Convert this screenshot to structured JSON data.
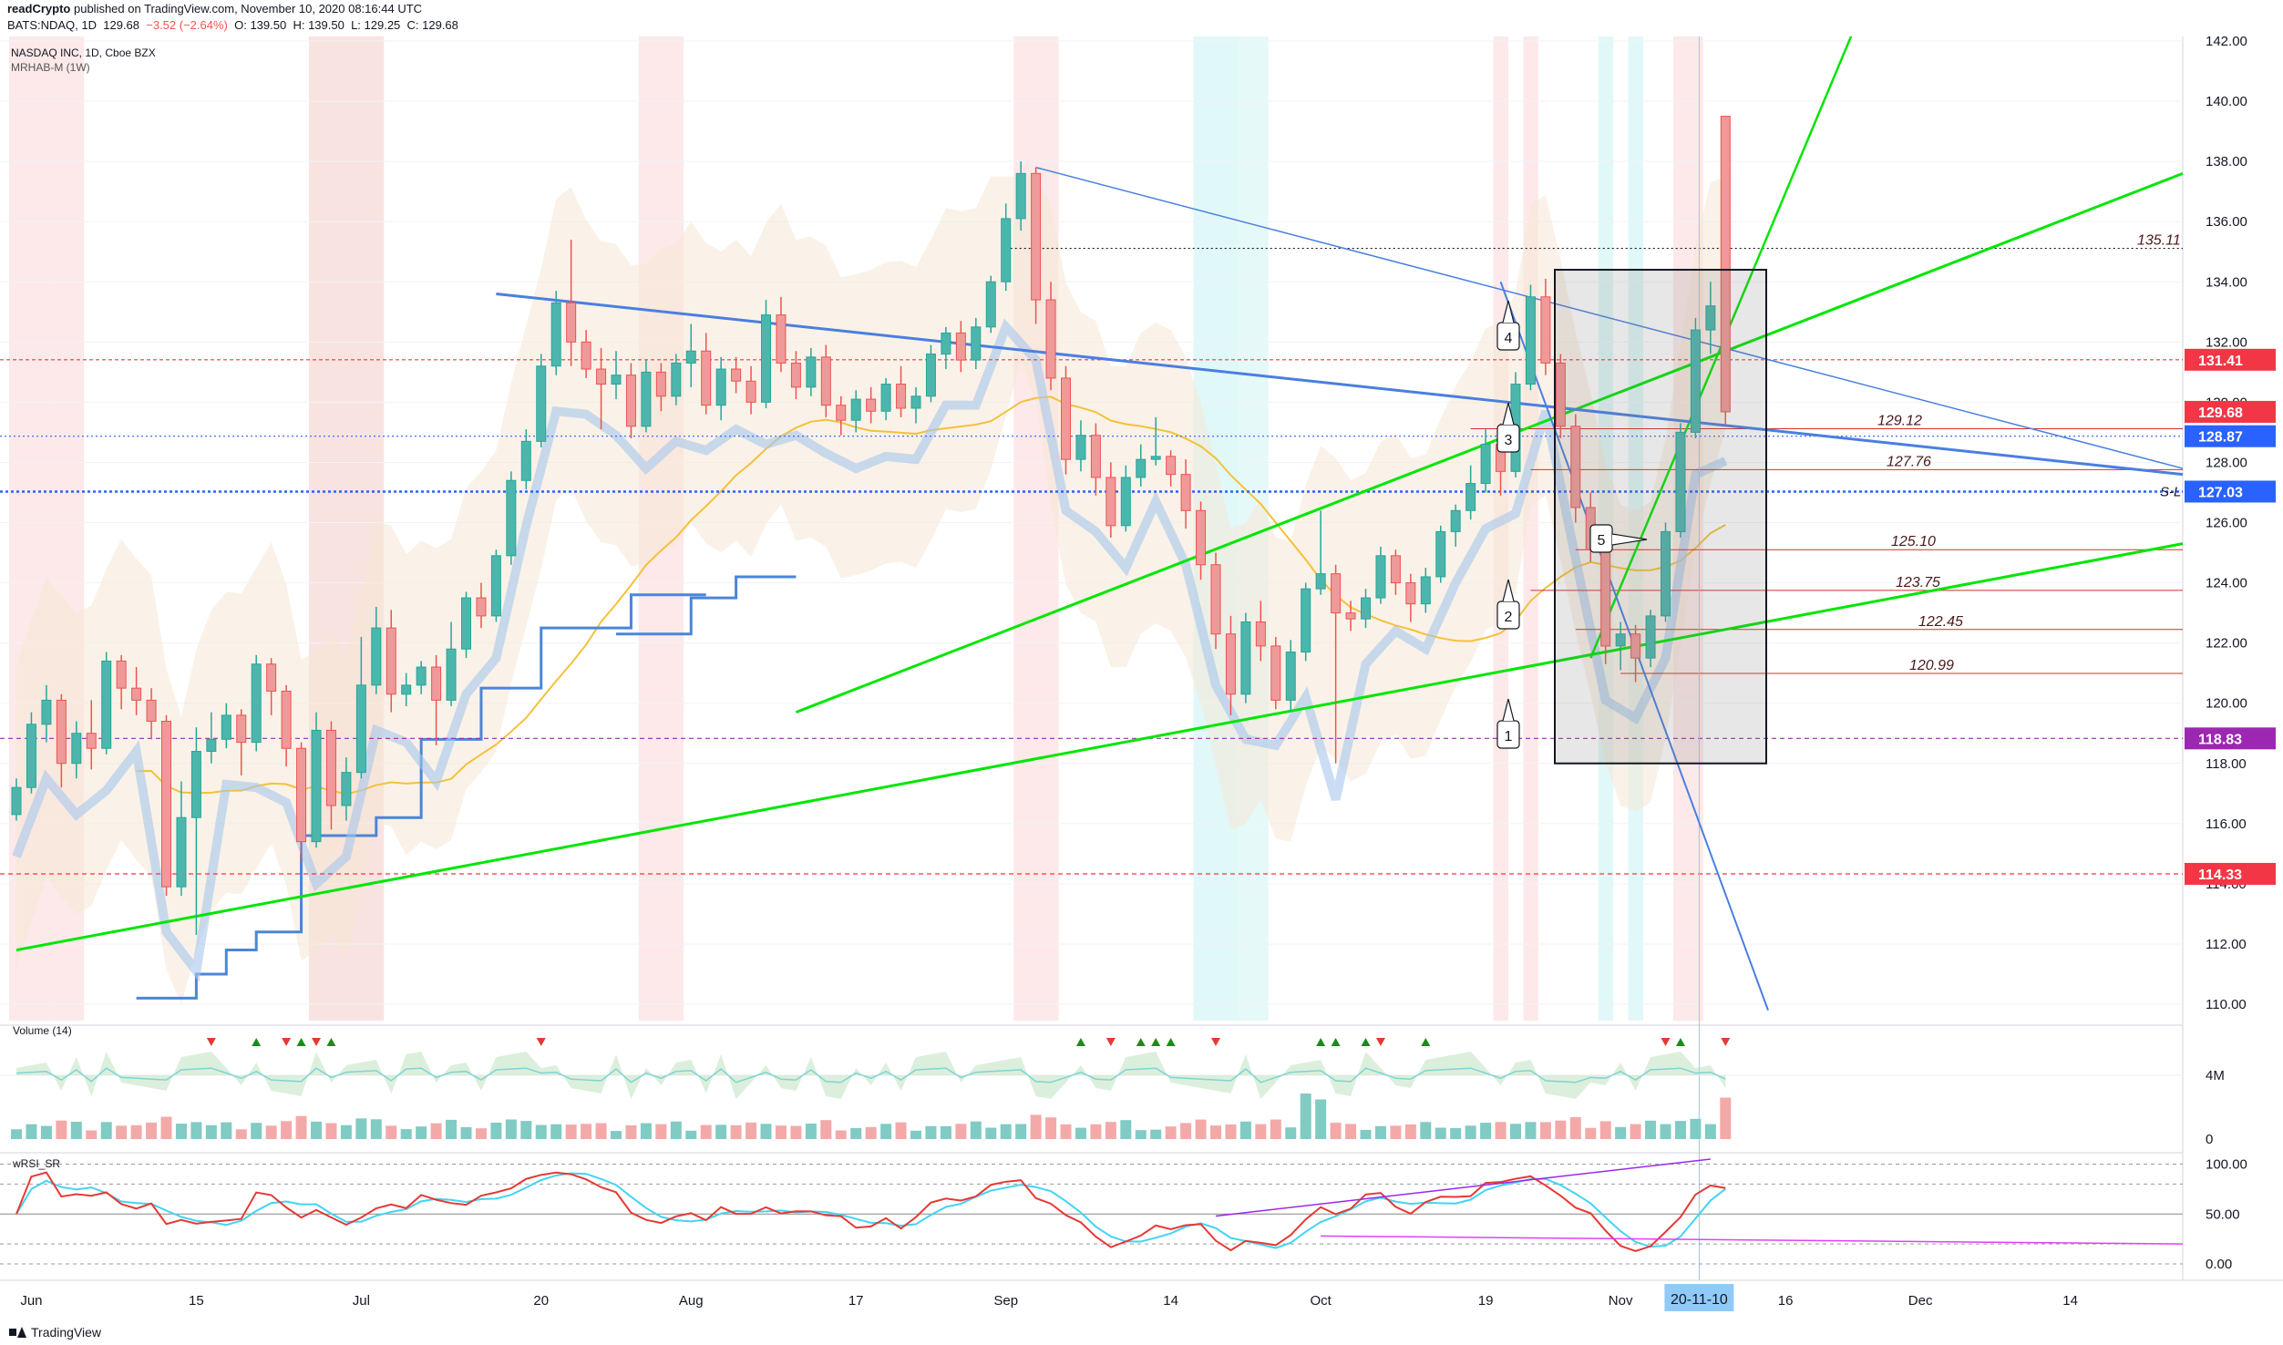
{
  "header": {
    "publisher": "readCrypto",
    "published_text": "published on TradingView.com, November 10, 2020 08:16:44 UTC",
    "symbol": "BATS:NDAQ, 1D",
    "last": "129.68",
    "change": "−3.52 (−2.64%)",
    "open": "O: 139.50",
    "high": "H: 139.50",
    "low": "L: 129.25",
    "close": "C: 129.68"
  },
  "legend": {
    "title": "NASDAQ INC, 1D, Cboe BZX",
    "indicator": "MRHAB-M (1W)"
  },
  "colors": {
    "up": "#26a69a",
    "down": "#ef5350",
    "accent_blue": "#2962ff",
    "trend_green": "#00e600",
    "trend_blue": "#4a7fe0"
  },
  "chart_data": {
    "type": "candlestick",
    "title": "NASDAQ INC, 1D, Cboe BZX",
    "ylim": [
      109.5,
      142.5
    ],
    "y_ticks": [
      110,
      112,
      114,
      116,
      118,
      120,
      122,
      124,
      126,
      128,
      130,
      132,
      134,
      136,
      138,
      140,
      142
    ],
    "y_tick_labels": [
      "110.00",
      "112.00",
      "114.00",
      "116.00",
      "118.00",
      "120.00",
      "122.00",
      "124.00",
      "126.00",
      "128.00",
      "130.00",
      "132.00",
      "134.00",
      "136.00",
      "138.00",
      "140.00",
      "142.00"
    ],
    "x_labels": [
      "Jun",
      "15",
      "Jul",
      "20",
      "Aug",
      "17",
      "Sep",
      "14",
      "Oct",
      "19",
      "Nov",
      "16",
      "Dec",
      "14"
    ],
    "x_label_bars": [
      1,
      12,
      23,
      35,
      45,
      56,
      66,
      77,
      87,
      98,
      107,
      118,
      127,
      137
    ],
    "current_date_label": "20-11-10",
    "current_date_bar": 112,
    "candles": [
      {
        "o": 116.3,
        "h": 117.5,
        "l": 116.1,
        "c": 117.2
      },
      {
        "o": 117.2,
        "h": 119.7,
        "l": 117.0,
        "c": 119.3
      },
      {
        "o": 119.3,
        "h": 120.6,
        "l": 118.7,
        "c": 120.1
      },
      {
        "o": 120.1,
        "h": 120.3,
        "l": 117.2,
        "c": 118.0
      },
      {
        "o": 118.0,
        "h": 119.4,
        "l": 117.5,
        "c": 119.0
      },
      {
        "o": 119.0,
        "h": 120.1,
        "l": 117.8,
        "c": 118.5
      },
      {
        "o": 118.5,
        "h": 121.7,
        "l": 118.3,
        "c": 121.4
      },
      {
        "o": 121.4,
        "h": 121.6,
        "l": 119.8,
        "c": 120.5
      },
      {
        "o": 120.5,
        "h": 121.2,
        "l": 119.6,
        "c": 120.1
      },
      {
        "o": 120.1,
        "h": 120.5,
        "l": 118.8,
        "c": 119.4
      },
      {
        "o": 119.4,
        "h": 119.6,
        "l": 113.6,
        "c": 113.9
      },
      {
        "o": 113.9,
        "h": 117.4,
        "l": 113.6,
        "c": 116.2
      },
      {
        "o": 116.2,
        "h": 119.2,
        "l": 112.3,
        "c": 118.4
      },
      {
        "o": 118.4,
        "h": 119.7,
        "l": 118.0,
        "c": 118.8
      },
      {
        "o": 118.8,
        "h": 120.0,
        "l": 118.5,
        "c": 119.6
      },
      {
        "o": 119.6,
        "h": 119.8,
        "l": 117.6,
        "c": 118.7
      },
      {
        "o": 118.7,
        "h": 121.6,
        "l": 118.4,
        "c": 121.3
      },
      {
        "o": 121.3,
        "h": 121.5,
        "l": 119.6,
        "c": 120.4
      },
      {
        "o": 120.4,
        "h": 120.6,
        "l": 117.9,
        "c": 118.5
      },
      {
        "o": 118.5,
        "h": 118.7,
        "l": 114.7,
        "c": 115.4
      },
      {
        "o": 115.4,
        "h": 119.7,
        "l": 115.2,
        "c": 119.1
      },
      {
        "o": 119.1,
        "h": 119.4,
        "l": 115.8,
        "c": 116.6
      },
      {
        "o": 116.6,
        "h": 118.2,
        "l": 116.1,
        "c": 117.7
      },
      {
        "o": 117.7,
        "h": 122.2,
        "l": 117.5,
        "c": 120.6
      },
      {
        "o": 120.6,
        "h": 123.2,
        "l": 120.3,
        "c": 122.5
      },
      {
        "o": 122.5,
        "h": 123.1,
        "l": 119.7,
        "c": 120.3
      },
      {
        "o": 120.3,
        "h": 121.0,
        "l": 119.9,
        "c": 120.6
      },
      {
        "o": 120.6,
        "h": 121.4,
        "l": 120.3,
        "c": 121.2
      },
      {
        "o": 121.2,
        "h": 121.6,
        "l": 118.6,
        "c": 120.1
      },
      {
        "o": 120.1,
        "h": 122.7,
        "l": 119.9,
        "c": 121.8
      },
      {
        "o": 121.8,
        "h": 123.7,
        "l": 121.5,
        "c": 123.5
      },
      {
        "o": 123.5,
        "h": 124.0,
        "l": 122.5,
        "c": 122.9
      },
      {
        "o": 122.9,
        "h": 125.1,
        "l": 122.7,
        "c": 124.9
      },
      {
        "o": 124.9,
        "h": 127.7,
        "l": 124.6,
        "c": 127.4
      },
      {
        "o": 127.4,
        "h": 129.1,
        "l": 127.1,
        "c": 128.7
      },
      {
        "o": 128.7,
        "h": 131.6,
        "l": 128.5,
        "c": 131.2
      },
      {
        "o": 131.2,
        "h": 133.7,
        "l": 130.9,
        "c": 133.3
      },
      {
        "o": 133.3,
        "h": 135.4,
        "l": 131.2,
        "c": 132.0
      },
      {
        "o": 132.0,
        "h": 132.4,
        "l": 130.8,
        "c": 131.1
      },
      {
        "o": 131.1,
        "h": 131.8,
        "l": 129.1,
        "c": 130.6
      },
      {
        "o": 130.6,
        "h": 131.7,
        "l": 130.1,
        "c": 130.9
      },
      {
        "o": 130.9,
        "h": 131.3,
        "l": 128.8,
        "c": 129.2
      },
      {
        "o": 129.2,
        "h": 131.4,
        "l": 129.0,
        "c": 131.0
      },
      {
        "o": 131.0,
        "h": 131.3,
        "l": 129.7,
        "c": 130.2
      },
      {
        "o": 130.2,
        "h": 131.6,
        "l": 129.9,
        "c": 131.3
      },
      {
        "o": 131.3,
        "h": 132.6,
        "l": 130.5,
        "c": 131.7
      },
      {
        "o": 131.7,
        "h": 132.3,
        "l": 129.6,
        "c": 129.9
      },
      {
        "o": 129.9,
        "h": 131.5,
        "l": 129.4,
        "c": 131.1
      },
      {
        "o": 131.1,
        "h": 131.5,
        "l": 130.3,
        "c": 130.7
      },
      {
        "o": 130.7,
        "h": 131.2,
        "l": 129.6,
        "c": 130.0
      },
      {
        "o": 130.0,
        "h": 133.4,
        "l": 129.8,
        "c": 132.9
      },
      {
        "o": 132.9,
        "h": 133.5,
        "l": 131.0,
        "c": 131.3
      },
      {
        "o": 131.3,
        "h": 131.7,
        "l": 130.1,
        "c": 130.5
      },
      {
        "o": 130.5,
        "h": 131.8,
        "l": 130.2,
        "c": 131.5
      },
      {
        "o": 131.5,
        "h": 131.9,
        "l": 129.5,
        "c": 129.9
      },
      {
        "o": 129.9,
        "h": 130.2,
        "l": 128.9,
        "c": 129.4
      },
      {
        "o": 129.4,
        "h": 130.4,
        "l": 129.0,
        "c": 130.1
      },
      {
        "o": 130.1,
        "h": 130.5,
        "l": 129.3,
        "c": 129.7
      },
      {
        "o": 129.7,
        "h": 130.8,
        "l": 129.4,
        "c": 130.6
      },
      {
        "o": 130.6,
        "h": 131.2,
        "l": 129.5,
        "c": 129.8
      },
      {
        "o": 129.8,
        "h": 130.5,
        "l": 129.3,
        "c": 130.2
      },
      {
        "o": 130.2,
        "h": 131.9,
        "l": 130.0,
        "c": 131.6
      },
      {
        "o": 131.6,
        "h": 132.5,
        "l": 131.1,
        "c": 132.3
      },
      {
        "o": 132.3,
        "h": 132.7,
        "l": 131.0,
        "c": 131.4
      },
      {
        "o": 131.4,
        "h": 132.8,
        "l": 131.1,
        "c": 132.5
      },
      {
        "o": 132.5,
        "h": 134.2,
        "l": 132.3,
        "c": 134.0
      },
      {
        "o": 134.0,
        "h": 136.6,
        "l": 133.7,
        "c": 136.1
      },
      {
        "o": 136.1,
        "h": 138.0,
        "l": 135.7,
        "c": 137.6
      },
      {
        "o": 137.6,
        "h": 137.8,
        "l": 132.6,
        "c": 133.4
      },
      {
        "o": 133.4,
        "h": 134.0,
        "l": 130.4,
        "c": 130.8
      },
      {
        "o": 130.8,
        "h": 131.2,
        "l": 127.6,
        "c": 128.1
      },
      {
        "o": 128.1,
        "h": 129.4,
        "l": 127.7,
        "c": 128.9
      },
      {
        "o": 128.9,
        "h": 129.3,
        "l": 126.9,
        "c": 127.5
      },
      {
        "o": 127.5,
        "h": 128.0,
        "l": 125.5,
        "c": 125.9
      },
      {
        "o": 125.9,
        "h": 127.9,
        "l": 125.7,
        "c": 127.5
      },
      {
        "o": 127.5,
        "h": 128.6,
        "l": 127.2,
        "c": 128.1
      },
      {
        "o": 128.1,
        "h": 129.5,
        "l": 127.9,
        "c": 128.2
      },
      {
        "o": 128.2,
        "h": 128.4,
        "l": 127.2,
        "c": 127.6
      },
      {
        "o": 127.6,
        "h": 128.1,
        "l": 125.8,
        "c": 126.4
      },
      {
        "o": 126.4,
        "h": 126.7,
        "l": 124.1,
        "c": 124.6
      },
      {
        "o": 124.6,
        "h": 125.0,
        "l": 121.8,
        "c": 122.3
      },
      {
        "o": 122.3,
        "h": 122.9,
        "l": 119.6,
        "c": 120.3
      },
      {
        "o": 120.3,
        "h": 123.0,
        "l": 120.0,
        "c": 122.7
      },
      {
        "o": 122.7,
        "h": 123.4,
        "l": 121.4,
        "c": 121.9
      },
      {
        "o": 121.9,
        "h": 122.2,
        "l": 119.8,
        "c": 120.1
      },
      {
        "o": 120.1,
        "h": 122.1,
        "l": 119.7,
        "c": 121.7
      },
      {
        "o": 121.7,
        "h": 124.0,
        "l": 121.4,
        "c": 123.8
      },
      {
        "o": 123.8,
        "h": 126.4,
        "l": 123.6,
        "c": 124.3
      },
      {
        "o": 124.3,
        "h": 124.6,
        "l": 118.0,
        "c": 123.0
      },
      {
        "o": 123.0,
        "h": 123.4,
        "l": 122.4,
        "c": 122.8
      },
      {
        "o": 122.8,
        "h": 123.8,
        "l": 122.5,
        "c": 123.5
      },
      {
        "o": 123.5,
        "h": 125.2,
        "l": 123.3,
        "c": 124.9
      },
      {
        "o": 124.9,
        "h": 125.1,
        "l": 123.6,
        "c": 124.0
      },
      {
        "o": 124.0,
        "h": 124.3,
        "l": 122.7,
        "c": 123.3
      },
      {
        "o": 123.3,
        "h": 124.5,
        "l": 123.0,
        "c": 124.2
      },
      {
        "o": 124.2,
        "h": 125.9,
        "l": 124.0,
        "c": 125.7
      },
      {
        "o": 125.7,
        "h": 126.6,
        "l": 125.2,
        "c": 126.4
      },
      {
        "o": 126.4,
        "h": 127.9,
        "l": 126.1,
        "c": 127.3
      },
      {
        "o": 127.3,
        "h": 129.1,
        "l": 127.0,
        "c": 128.6
      },
      {
        "o": 128.6,
        "h": 129.3,
        "l": 126.9,
        "c": 127.7
      },
      {
        "o": 127.7,
        "h": 131.0,
        "l": 127.5,
        "c": 130.6
      },
      {
        "o": 130.6,
        "h": 133.9,
        "l": 130.4,
        "c": 133.5
      },
      {
        "o": 133.5,
        "h": 134.1,
        "l": 130.9,
        "c": 131.3
      },
      {
        "o": 131.3,
        "h": 131.6,
        "l": 128.8,
        "c": 129.2
      },
      {
        "o": 129.2,
        "h": 129.6,
        "l": 126.0,
        "c": 126.5
      },
      {
        "o": 126.5,
        "h": 127.0,
        "l": 124.7,
        "c": 125.1
      },
      {
        "o": 125.1,
        "h": 125.4,
        "l": 121.3,
        "c": 121.9
      },
      {
        "o": 121.9,
        "h": 122.7,
        "l": 121.1,
        "c": 122.3
      },
      {
        "o": 122.3,
        "h": 122.6,
        "l": 120.7,
        "c": 121.5
      },
      {
        "o": 121.5,
        "h": 123.1,
        "l": 121.2,
        "c": 122.9
      },
      {
        "o": 122.9,
        "h": 126.0,
        "l": 122.7,
        "c": 125.7
      },
      {
        "o": 125.7,
        "h": 129.3,
        "l": 125.5,
        "c": 129.0
      },
      {
        "o": 129.0,
        "h": 132.8,
        "l": 128.8,
        "c": 132.4
      },
      {
        "o": 132.4,
        "h": 134.0,
        "l": 131.6,
        "c": 133.2
      },
      {
        "o": 139.5,
        "h": 139.5,
        "l": 129.25,
        "c": 129.68
      }
    ],
    "price_labels": [
      {
        "value": 131.41,
        "label": "131.41",
        "color": "#f23645"
      },
      {
        "value": 129.68,
        "label": "129.68",
        "color": "#f23645"
      },
      {
        "value": 128.87,
        "label": "128.87",
        "color": "#2962ff"
      },
      {
        "value": 127.03,
        "label": "127.03",
        "color": "#2962ff"
      },
      {
        "value": 118.83,
        "label": "118.83",
        "color": "#9c27b0"
      },
      {
        "value": 114.33,
        "label": "114.33",
        "color": "#f23645"
      }
    ],
    "level_labels": [
      {
        "value": 135.11,
        "label": "135.11"
      },
      {
        "value": 129.12,
        "label": "129.12"
      },
      {
        "value": 127.76,
        "label": "127.76"
      },
      {
        "value": 125.1,
        "label": "125.10"
      },
      {
        "value": 123.75,
        "label": "123.75"
      },
      {
        "value": 122.45,
        "label": "122.45"
      },
      {
        "value": 120.99,
        "label": "120.99"
      }
    ],
    "sl_label": "S-L",
    "callouts": [
      "1",
      "2",
      "3",
      "4",
      "5"
    ],
    "volume_pane": {
      "label": "Volume (14)",
      "y_ticks": [
        "4M",
        "0"
      ]
    },
    "rsi_pane": {
      "label": "wRSI_SR",
      "y_ticks": [
        "100.00",
        "50.00",
        "0.00"
      ],
      "ylim": [
        -10,
        105
      ]
    }
  },
  "footer": {
    "brand": "TradingView"
  }
}
